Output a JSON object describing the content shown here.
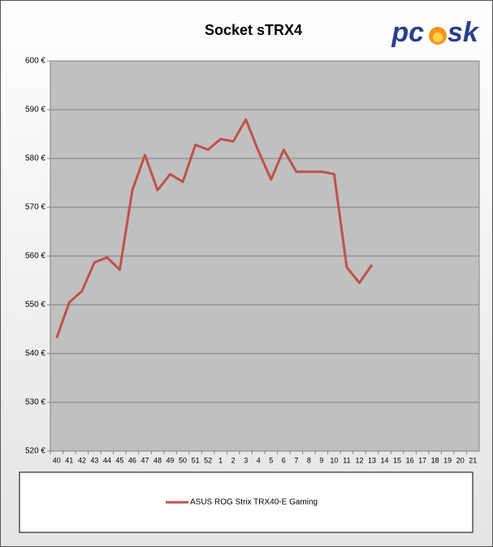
{
  "chart_data": {
    "type": "line",
    "title": "Socket sTRX4",
    "logo": [
      "pc",
      "sk"
    ],
    "categories": [
      "40",
      "41",
      "42",
      "43",
      "44",
      "45",
      "46",
      "47",
      "48",
      "49",
      "50",
      "51",
      "52",
      "1",
      "2",
      "3",
      "4",
      "5",
      "6",
      "7",
      "8",
      "9",
      "10",
      "11",
      "12",
      "13",
      "14",
      "15",
      "16",
      "17",
      "18",
      "19",
      "20",
      "21"
    ],
    "series": [
      {
        "name": "ASUS ROG Strix TRX40-E Gaming",
        "color": "#c0504d",
        "values": [
          543.2,
          550.5,
          552.8,
          558.7,
          559.7,
          557.2,
          573.5,
          580.7,
          573.5,
          576.8,
          575.2,
          582.8,
          581.8,
          584.0,
          583.5,
          588.0,
          581.5,
          575.7,
          581.8,
          577.3,
          577.3,
          577.3,
          576.8,
          557.7,
          554.5,
          558.2,
          null,
          null,
          null,
          null,
          null,
          null,
          null,
          null
        ]
      }
    ],
    "ylim": [
      520,
      600
    ],
    "yticks": [
      {
        "value": 520,
        "label": "520 €"
      },
      {
        "value": 530,
        "label": "530 €"
      },
      {
        "value": 540,
        "label": "540 €"
      },
      {
        "value": 550,
        "label": "550 €"
      },
      {
        "value": 560,
        "label": "560 €"
      },
      {
        "value": 570,
        "label": "570 €"
      },
      {
        "value": 580,
        "label": "580 €"
      },
      {
        "value": 590,
        "label": "590 €"
      },
      {
        "value": 600,
        "label": "600 €"
      }
    ],
    "grid": true
  }
}
